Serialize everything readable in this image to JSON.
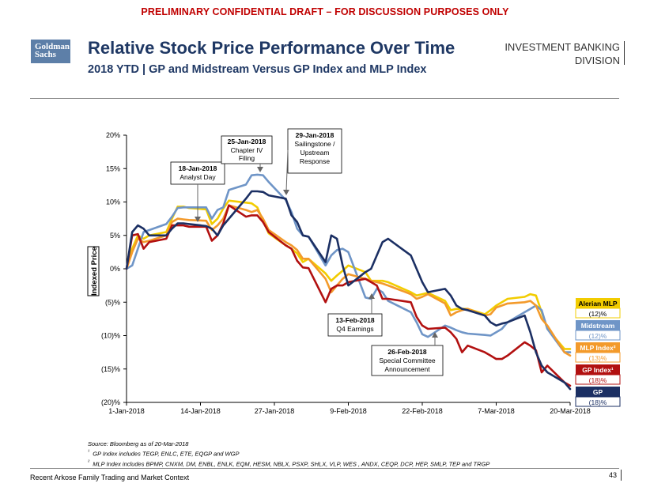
{
  "header": {
    "draft_banner": "PRELIMINARY CONFIDENTIAL DRAFT – FOR DISCUSSION PURPOSES ONLY",
    "logo_line1": "Goldman",
    "logo_line2": "Sachs",
    "title": "Relative Stock Price Performance Over Time",
    "subtitle": "2018 YTD | GP and Midstream Versus GP Index and MLP Index",
    "division_line1": "INVESTMENT BANKING",
    "division_line2": "DIVISION"
  },
  "colors": {
    "alerian": "#f2cc00",
    "midstream": "#6f95c7",
    "mlp": "#f39a2b",
    "gpindex": "#b21010",
    "gp": "#1b2f63",
    "title": "#1f3864",
    "draft": "#c00000"
  },
  "chart_data": {
    "type": "line",
    "ylabel": "Indexed Price",
    "ylim": [
      -20,
      20
    ],
    "yticks": [
      20,
      15,
      10,
      5,
      0,
      -5,
      -10,
      -15,
      -20
    ],
    "ytick_labels": [
      "20%",
      "15%",
      "10%",
      "5%",
      "0%",
      "(5)%",
      "(10)%",
      "(15)%",
      "(20)%"
    ],
    "x_days_range": [
      0,
      78
    ],
    "xtick_days": [
      0,
      13,
      26,
      39,
      52,
      65,
      78
    ],
    "xtick_labels": [
      "1-Jan-2018",
      "14-Jan-2018",
      "27-Jan-2018",
      "9-Feb-2018",
      "22-Feb-2018",
      "7-Mar-2018",
      "20-Mar-2018"
    ],
    "series": [
      {
        "name": "Alerian MLP",
        "color_key": "alerian",
        "end_label": "Alerian MLP",
        "end_value": "(12)%",
        "x": [
          0,
          1,
          2,
          3,
          4,
          7,
          8,
          9,
          10,
          11,
          14,
          15,
          16,
          17,
          18,
          21,
          22,
          23,
          24,
          25,
          28,
          29,
          30,
          31,
          32,
          35,
          36,
          37,
          38,
          39,
          42,
          43,
          44,
          45,
          46,
          50,
          51,
          52,
          53,
          56,
          57,
          58,
          59,
          60,
          63,
          64,
          65,
          66,
          67,
          70,
          71,
          72,
          73,
          74,
          77,
          78
        ],
        "y": [
          0,
          3,
          5,
          4.5,
          5,
          5.5,
          7.5,
          9.3,
          9.3,
          9.1,
          8.9,
          6.7,
          7.5,
          9,
          10.2,
          9.9,
          9.8,
          9.2,
          7.2,
          5.3,
          3.5,
          3,
          2.3,
          1,
          1.5,
          -0.7,
          -1.8,
          -1,
          -0.3,
          0.5,
          -0.5,
          -1.8,
          -1.8,
          -1.8,
          -2,
          -3.5,
          -4,
          -3.8,
          -3.6,
          -4.8,
          -6.2,
          -6,
          -6,
          -6,
          -6.8,
          -6.2,
          -5.5,
          -5,
          -4.5,
          -4.2,
          -3.8,
          -4,
          -6.5,
          -9,
          -12,
          -12
        ]
      },
      {
        "name": "Midstream",
        "color_key": "midstream",
        "end_label": "Midstream",
        "end_value": "(12)%",
        "x": [
          0,
          1,
          2,
          3,
          4,
          7,
          8,
          9,
          10,
          11,
          14,
          15,
          16,
          17,
          18,
          21,
          22,
          23,
          24,
          25,
          28,
          29,
          30,
          31,
          32,
          35,
          36,
          37,
          38,
          39,
          42,
          43,
          44,
          45,
          46,
          50,
          51,
          52,
          53,
          56,
          57,
          58,
          59,
          60,
          63,
          64,
          65,
          66,
          67,
          70,
          71,
          72,
          73,
          74,
          77,
          78
        ],
        "y": [
          0,
          0.5,
          3,
          5.5,
          5.8,
          6.7,
          7.8,
          9.1,
          9.2,
          9.2,
          9.2,
          7.5,
          8.8,
          9.2,
          11.8,
          12.6,
          14,
          14.1,
          14,
          13,
          10.3,
          8.5,
          6,
          5,
          4.8,
          0.5,
          2,
          2.8,
          3,
          2.5,
          -4.3,
          -4.5,
          -3,
          -3.5,
          -4.8,
          -6.5,
          -8,
          -9.8,
          -10.2,
          -8.5,
          -8.8,
          -9.2,
          -9.5,
          -9.7,
          -9.9,
          -10,
          -9.5,
          -9,
          -8,
          -6.5,
          -6,
          -5.5,
          -6.2,
          -9,
          -12.5,
          -12.5
        ]
      },
      {
        "name": "MLP Index",
        "color_key": "mlp",
        "end_label": "MLP Index²",
        "end_value": "(13)%",
        "x": [
          0,
          1,
          2,
          3,
          4,
          7,
          8,
          9,
          10,
          11,
          14,
          15,
          16,
          17,
          18,
          21,
          22,
          23,
          24,
          25,
          28,
          29,
          30,
          31,
          32,
          35,
          36,
          37,
          38,
          39,
          42,
          43,
          44,
          45,
          46,
          50,
          51,
          52,
          53,
          56,
          57,
          58,
          59,
          60,
          63,
          64,
          65,
          66,
          67,
          70,
          71,
          72,
          73,
          74,
          77,
          78
        ],
        "y": [
          0,
          2.5,
          4.5,
          4,
          4.2,
          5,
          7,
          7.5,
          7.4,
          7.3,
          7.2,
          5.8,
          6.5,
          7.5,
          9.5,
          8.8,
          8.5,
          8.8,
          7.5,
          5.8,
          4,
          3.5,
          2.8,
          1.5,
          1.5,
          -1.5,
          -3.5,
          -2.5,
          -1.5,
          -0.8,
          -1.5,
          -1.8,
          -2,
          -2.2,
          -2.5,
          -3.8,
          -4.5,
          -4.2,
          -3.8,
          -5.2,
          -7,
          -6.5,
          -6.2,
          -6,
          -7,
          -6.8,
          -5.8,
          -5.5,
          -5.2,
          -5,
          -4.8,
          -5.5,
          -7.5,
          -8.5,
          -12.5,
          -13
        ]
      },
      {
        "name": "GP Index",
        "color_key": "gpindex",
        "end_label": "GP Index¹",
        "end_value": "(18)%",
        "x": [
          0,
          1,
          2,
          3,
          4,
          7,
          8,
          9,
          10,
          11,
          14,
          15,
          16,
          17,
          18,
          21,
          22,
          23,
          24,
          25,
          28,
          29,
          30,
          31,
          32,
          35,
          36,
          37,
          38,
          39,
          42,
          43,
          44,
          45,
          46,
          50,
          51,
          52,
          53,
          56,
          57,
          58,
          59,
          60,
          63,
          64,
          65,
          66,
          67,
          70,
          71,
          72,
          73,
          74,
          77,
          78
        ],
        "y": [
          0,
          5,
          5.2,
          3,
          4,
          4.5,
          6.5,
          6.5,
          6.5,
          6.3,
          6.3,
          4.2,
          5,
          6.8,
          9.5,
          7.8,
          8,
          8,
          7,
          5.5,
          3.5,
          3,
          1.2,
          0.2,
          0.1,
          -5,
          -3,
          -2.5,
          -2.5,
          -2,
          -1.5,
          -2,
          -2.5,
          -4.5,
          -4.5,
          -5,
          -7.2,
          -8.5,
          -9,
          -8.8,
          -9.5,
          -10.5,
          -12.5,
          -11.5,
          -12.5,
          -13,
          -13.5,
          -13.5,
          -13,
          -11,
          -11.5,
          -12.2,
          -15.5,
          -14.5,
          -17,
          -17.5
        ]
      },
      {
        "name": "GP",
        "color_key": "gp",
        "end_label": "GP",
        "end_value": "(18)%",
        "x": [
          0,
          1,
          2,
          3,
          4,
          7,
          8,
          9,
          10,
          11,
          14,
          15,
          16,
          17,
          18,
          21,
          22,
          23,
          24,
          25,
          28,
          29,
          30,
          31,
          32,
          35,
          36,
          37,
          38,
          39,
          42,
          43,
          44,
          45,
          46,
          50,
          51,
          52,
          53,
          56,
          57,
          58,
          59,
          60,
          63,
          64,
          65,
          66,
          67,
          70,
          71,
          72,
          73,
          74,
          77,
          78
        ],
        "y": [
          0,
          5.5,
          6.5,
          6,
          5,
          5,
          6,
          6.8,
          6.8,
          6.7,
          6.4,
          6,
          5,
          6.5,
          7.5,
          10.5,
          11.6,
          11.6,
          11.5,
          11,
          10.5,
          8,
          7,
          5,
          4.8,
          1,
          5,
          4.5,
          0.5,
          -2.5,
          -0.5,
          0,
          2,
          4,
          4.5,
          2,
          0,
          -2,
          -3.5,
          -3,
          -4,
          -5.5,
          -6,
          -6.2,
          -7,
          -8,
          -8.5,
          -8.2,
          -8,
          -7,
          -9.5,
          -12.5,
          -14.5,
          -15.5,
          -17,
          -18
        ]
      }
    ],
    "annotations": [
      {
        "date": "18-Jan-2018",
        "text": "Analyst Day"
      },
      {
        "date": "25-Jan-2018",
        "text": "Chapter IV Filing"
      },
      {
        "date": "29-Jan-2018",
        "text": "Sailingstone / Upstream Response"
      },
      {
        "date": "13-Feb-2018",
        "text": "Q4 Earnings"
      },
      {
        "date": "26-Feb-2018",
        "text": "Special Committee Announcement"
      }
    ]
  },
  "notes": {
    "source": "Source:  Bloomberg as of 20-Mar-2018",
    "fn1_marker": "¹",
    "fn1": "GP Index includes TEGP, ENLC, ETE, EQGP and WGP",
    "fn2_marker": "²",
    "fn2": "MLP Index includes BPMP, CNXM, DM, ENBL, ENLK, EQM, HESM, NBLX, PSXP, SHLX, VLP, WES , ANDX, CEQP, DCP, HEP, SMLP, TEP and TRGP"
  },
  "footer": {
    "left": "Recent Arkose Family Trading and Market Context",
    "page": "43"
  }
}
